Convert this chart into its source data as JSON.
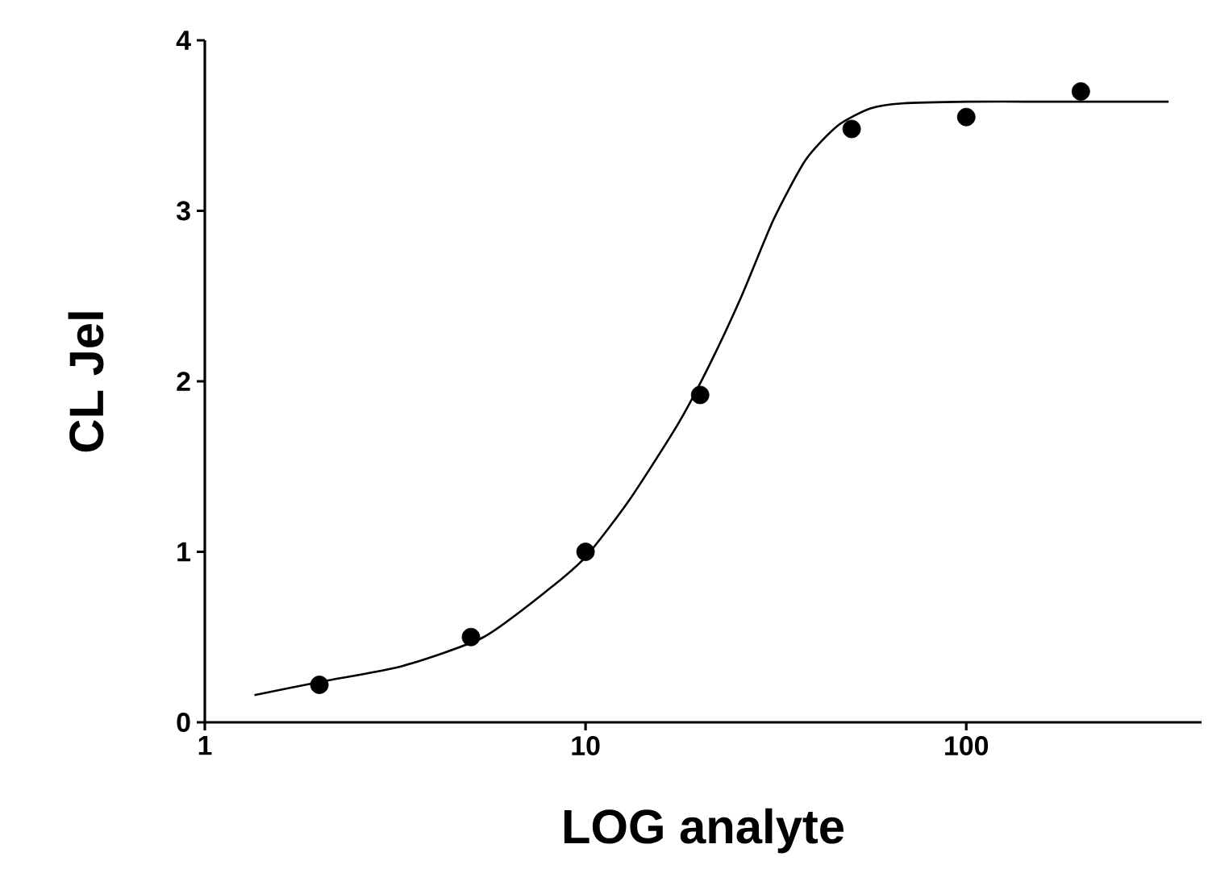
{
  "chart_data": {
    "type": "scatter",
    "xlabel": "LOG analyte",
    "ylabel": "CL Jel",
    "log": "x",
    "xlim": [
      1,
      415
    ],
    "ylim": [
      0,
      4
    ],
    "xticks": [
      1,
      10,
      100
    ],
    "yticks": [
      0,
      1,
      2,
      3,
      4
    ],
    "series": [
      {
        "marker": "circle",
        "color": "#000000",
        "x": [
          2,
          5,
          10,
          20,
          50,
          100,
          200
        ],
        "values": [
          0.22,
          0.5,
          1.0,
          1.92,
          3.48,
          3.55,
          3.7
        ]
      },
      {
        "type": "line",
        "marker": "none",
        "line_style": "solid",
        "color": "#000000",
        "x": [
          1.35,
          2.04,
          3.3,
          5.4,
          8,
          10,
          13,
          17.5,
          21.2,
          25.7,
          31.2,
          37.9,
          46,
          56,
          68,
          101,
          149,
          268,
          340
        ],
        "values": [
          0.16,
          0.24,
          0.33,
          0.5,
          0.78,
          0.97,
          1.3,
          1.75,
          2.1,
          2.5,
          2.95,
          3.3,
          3.5,
          3.6,
          3.63,
          3.64,
          3.64,
          3.64,
          3.64
        ]
      }
    ]
  }
}
